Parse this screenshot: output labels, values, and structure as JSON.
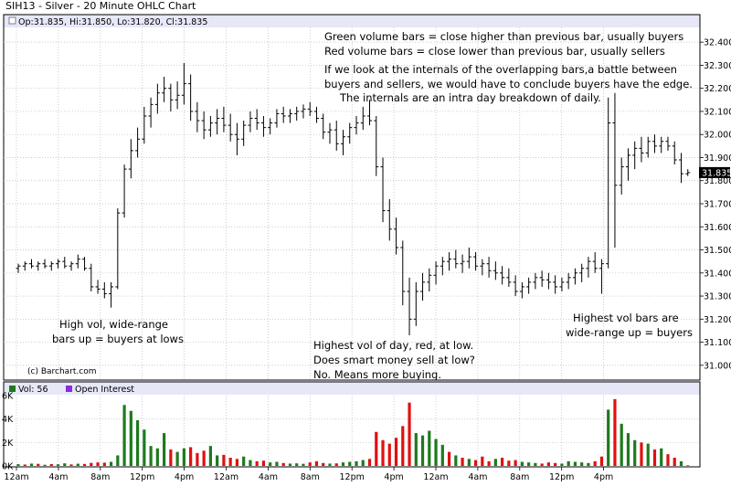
{
  "header": {
    "title": "SIH13 - Silver - 20 Minute OHLC Chart",
    "ohlc_readout": "Op:31.835, Hi:31.850, Lo:31.820, Cl:31.835"
  },
  "copyright": "(c) Barchart.com",
  "last_price_label": "31.835",
  "volume_legend": {
    "vol": "Vol: 56",
    "oi": "Open Interest"
  },
  "colors": {
    "up": "#1e7a1e",
    "down": "#e01010",
    "price": "#000000",
    "legend_band": "#e6e8f8",
    "oi": "#8a2be2"
  },
  "annotations": [
    "Green volume bars = close higher than previous bar, usually buyers",
    "Red volume bars = close lower than previous bar, usually sellers",
    "If we look at the internals of the overlapping bars,a battle between",
    "buyers and sellers, we would have to conclude buyers have the edge.",
    "The internals are an intra day breakdown of daily.",
    "High vol, wide-range",
    "bars up = buyers at lows",
    "Highest vol of day, red, at low.",
    "Does smart money sell at low?",
    "No.  Means more buying.",
    "Highest vol bars are",
    "wide-range up = buyers"
  ],
  "chart_data": [
    {
      "type": "ohlc",
      "title": "SIH13 - Silver - 20 Minute OHLC Chart",
      "y_ticks": [
        "32.400",
        "32.300",
        "32.200",
        "32.100",
        "32.000",
        "31.900",
        "31.800",
        "31.700",
        "31.600",
        "31.500",
        "31.400",
        "31.300",
        "31.200",
        "31.100",
        "31.000"
      ],
      "ylim": [
        30.94,
        32.46
      ],
      "x_ticks": [
        "12am",
        "4am",
        "8am",
        "12pm",
        "4pm",
        "12am",
        "4am",
        "8am",
        "12pm",
        "4pm",
        "12am",
        "4am",
        "8am",
        "12pm",
        "4pm"
      ],
      "bars": [
        [
          31.42,
          31.44,
          31.4,
          31.43
        ],
        [
          31.43,
          31.45,
          31.41,
          31.44
        ],
        [
          31.44,
          31.46,
          31.42,
          31.43
        ],
        [
          31.43,
          31.45,
          31.41,
          31.44
        ],
        [
          31.44,
          31.46,
          31.42,
          31.43
        ],
        [
          31.43,
          31.45,
          31.41,
          31.44
        ],
        [
          31.44,
          31.46,
          31.42,
          31.45
        ],
        [
          31.45,
          31.47,
          31.42,
          31.43
        ],
        [
          31.43,
          31.45,
          31.41,
          31.44
        ],
        [
          31.44,
          31.48,
          31.42,
          31.46
        ],
        [
          31.46,
          31.47,
          31.41,
          31.42
        ],
        [
          31.42,
          31.44,
          31.32,
          31.34
        ],
        [
          31.34,
          31.37,
          31.31,
          31.33
        ],
        [
          31.33,
          31.36,
          31.29,
          31.31
        ],
        [
          31.31,
          31.36,
          31.25,
          31.34
        ],
        [
          31.34,
          31.68,
          31.33,
          31.66
        ],
        [
          31.66,
          31.87,
          31.64,
          31.85
        ],
        [
          31.85,
          31.98,
          31.81,
          31.93
        ],
        [
          31.93,
          32.03,
          31.9,
          31.98
        ],
        [
          31.98,
          32.12,
          31.96,
          32.08
        ],
        [
          32.08,
          32.16,
          32.03,
          32.13
        ],
        [
          32.13,
          32.22,
          32.09,
          32.18
        ],
        [
          32.18,
          32.25,
          32.14,
          32.2
        ],
        [
          32.2,
          32.22,
          32.1,
          32.15
        ],
        [
          32.15,
          32.23,
          32.11,
          32.17
        ],
        [
          32.17,
          32.31,
          32.13,
          32.22
        ],
        [
          32.22,
          32.26,
          32.06,
          32.1
        ],
        [
          32.1,
          32.14,
          32.01,
          32.06
        ],
        [
          32.06,
          32.1,
          31.98,
          32.02
        ],
        [
          32.02,
          32.08,
          31.99,
          32.05
        ],
        [
          32.05,
          32.11,
          32.0,
          32.07
        ],
        [
          32.07,
          32.12,
          32.01,
          32.04
        ],
        [
          32.04,
          32.09,
          31.97,
          32.0
        ],
        [
          32.0,
          32.05,
          31.91,
          31.98
        ],
        [
          31.98,
          32.06,
          31.95,
          32.04
        ],
        [
          32.04,
          32.1,
          32.01,
          32.07
        ],
        [
          32.07,
          32.11,
          32.02,
          32.05
        ],
        [
          32.05,
          32.08,
          31.99,
          32.03
        ],
        [
          32.03,
          32.07,
          32.0,
          32.05
        ],
        [
          32.05,
          32.11,
          32.03,
          32.09
        ],
        [
          32.09,
          32.12,
          32.05,
          32.08
        ],
        [
          32.08,
          32.11,
          32.05,
          32.09
        ],
        [
          32.09,
          32.12,
          32.06,
          32.1
        ],
        [
          32.1,
          32.13,
          32.07,
          32.11
        ],
        [
          32.11,
          32.14,
          32.08,
          32.1
        ],
        [
          32.1,
          32.12,
          32.05,
          32.07
        ],
        [
          32.07,
          32.09,
          31.98,
          32.01
        ],
        [
          32.01,
          32.05,
          31.96,
          32.02
        ],
        [
          32.02,
          32.06,
          31.93,
          31.96
        ],
        [
          31.96,
          32.02,
          31.91,
          31.99
        ],
        [
          31.99,
          32.05,
          31.96,
          32.03
        ],
        [
          32.03,
          32.08,
          32.0,
          32.05
        ],
        [
          32.05,
          32.12,
          32.02,
          32.08
        ],
        [
          32.08,
          32.15,
          32.04,
          32.06
        ],
        [
          32.06,
          32.08,
          31.82,
          31.86
        ],
        [
          31.86,
          31.9,
          31.62,
          31.67
        ],
        [
          31.67,
          31.72,
          31.54,
          31.59
        ],
        [
          31.59,
          31.64,
          31.48,
          31.51
        ],
        [
          31.51,
          31.54,
          31.26,
          31.32
        ],
        [
          31.32,
          31.38,
          31.13,
          31.2
        ],
        [
          31.2,
          31.36,
          31.17,
          31.32
        ],
        [
          31.32,
          31.4,
          31.28,
          31.36
        ],
        [
          31.36,
          31.42,
          31.32,
          31.39
        ],
        [
          31.39,
          31.45,
          31.35,
          31.43
        ],
        [
          31.43,
          31.47,
          31.39,
          31.45
        ],
        [
          31.45,
          31.49,
          31.41,
          31.46
        ],
        [
          31.46,
          31.5,
          31.42,
          31.44
        ],
        [
          31.44,
          31.48,
          31.4,
          31.45
        ],
        [
          31.45,
          31.51,
          31.42,
          31.47
        ],
        [
          31.47,
          31.49,
          31.41,
          31.43
        ],
        [
          31.43,
          31.46,
          31.39,
          31.44
        ],
        [
          31.44,
          31.47,
          31.38,
          31.41
        ],
        [
          31.41,
          31.45,
          31.37,
          31.4
        ],
        [
          31.4,
          31.43,
          31.35,
          31.38
        ],
        [
          31.38,
          31.42,
          31.34,
          31.36
        ],
        [
          31.36,
          31.39,
          31.3,
          31.32
        ],
        [
          31.32,
          31.36,
          31.29,
          31.34
        ],
        [
          31.34,
          31.38,
          31.31,
          31.36
        ],
        [
          31.36,
          31.4,
          31.33,
          31.38
        ],
        [
          31.38,
          31.41,
          31.34,
          31.37
        ],
        [
          31.37,
          31.4,
          31.33,
          31.36
        ],
        [
          31.36,
          31.39,
          31.31,
          31.34
        ],
        [
          31.34,
          31.38,
          31.32,
          31.36
        ],
        [
          31.36,
          31.4,
          31.33,
          31.38
        ],
        [
          31.38,
          31.42,
          31.35,
          31.4
        ],
        [
          31.4,
          31.44,
          31.36,
          31.42
        ],
        [
          31.42,
          31.47,
          31.38,
          31.45
        ],
        [
          31.45,
          31.49,
          31.4,
          31.42
        ],
        [
          31.42,
          31.46,
          31.31,
          31.44
        ],
        [
          31.44,
          32.16,
          31.42,
          32.05
        ],
        [
          32.05,
          32.18,
          31.51,
          31.78
        ],
        [
          31.78,
          31.9,
          31.74,
          31.86
        ],
        [
          31.86,
          31.94,
          31.8,
          31.91
        ],
        [
          31.91,
          31.97,
          31.85,
          31.94
        ],
        [
          31.94,
          31.99,
          31.88,
          31.92
        ],
        [
          31.92,
          31.99,
          31.9,
          31.97
        ],
        [
          31.97,
          32.0,
          31.92,
          31.95
        ],
        [
          31.95,
          31.99,
          31.92,
          31.97
        ],
        [
          31.97,
          31.99,
          31.93,
          31.95
        ],
        [
          31.95,
          31.97,
          31.87,
          31.89
        ],
        [
          31.89,
          31.92,
          31.79,
          31.83
        ],
        [
          31.83,
          31.85,
          31.82,
          31.835
        ]
      ]
    },
    {
      "type": "bar",
      "title": "Vol",
      "y_ticks": [
        "6K",
        "4K",
        "2K",
        "0K"
      ],
      "ylim": [
        0,
        6000
      ],
      "series": [
        {
          "name": "Vol",
          "values": [
            150,
            120,
            200,
            180,
            100,
            160,
            140,
            220,
            130,
            190,
            170,
            260,
            300,
            280,
            350,
            900,
            5200,
            4700,
            3900,
            3100,
            1700,
            1500,
            2800,
            1400,
            1200,
            1500,
            1600,
            1100,
            1300,
            1700,
            900,
            950,
            700,
            600,
            800,
            500,
            400,
            450,
            300,
            350,
            250,
            200,
            220,
            180,
            300,
            400,
            250,
            200,
            220,
            300,
            350,
            400,
            500,
            600,
            2900,
            2200,
            1900,
            2400,
            3400,
            5400,
            2800,
            2600,
            3000,
            2300,
            1800,
            1200,
            900,
            700,
            600,
            500,
            800,
            400,
            600,
            700,
            450,
            500,
            350,
            300,
            250,
            200,
            300,
            250,
            200,
            400,
            350,
            300,
            250,
            400,
            800,
            4800,
            5700,
            3600,
            2800,
            2200,
            2000,
            1900,
            1400,
            1500,
            1000,
            700,
            400,
            56
          ]
        },
        {
          "name": "Open Interest",
          "values": []
        }
      ],
      "colors_up_down": [
        "g",
        "r",
        "g",
        "r",
        "g",
        "r",
        "g",
        "g",
        "r",
        "g",
        "r",
        "r",
        "r",
        "r",
        "g",
        "g",
        "g",
        "g",
        "g",
        "g",
        "g",
        "g",
        "g",
        "r",
        "g",
        "g",
        "r",
        "r",
        "r",
        "g",
        "g",
        "r",
        "r",
        "r",
        "g",
        "g",
        "r",
        "r",
        "g",
        "g",
        "r",
        "g",
        "g",
        "g",
        "r",
        "r",
        "r",
        "g",
        "r",
        "g",
        "g",
        "g",
        "g",
        "r",
        "r",
        "r",
        "r",
        "r",
        "r",
        "r",
        "g",
        "g",
        "g",
        "g",
        "g",
        "r",
        "g",
        "r",
        "g",
        "r",
        "r",
        "r",
        "g",
        "r",
        "r",
        "r",
        "g",
        "g",
        "g",
        "r",
        "r",
        "r",
        "g",
        "g",
        "g",
        "g",
        "g",
        "r",
        "r",
        "g",
        "r",
        "g",
        "g",
        "g",
        "r",
        "g",
        "r",
        "g",
        "r",
        "r",
        "g",
        "g"
      ]
    }
  ]
}
